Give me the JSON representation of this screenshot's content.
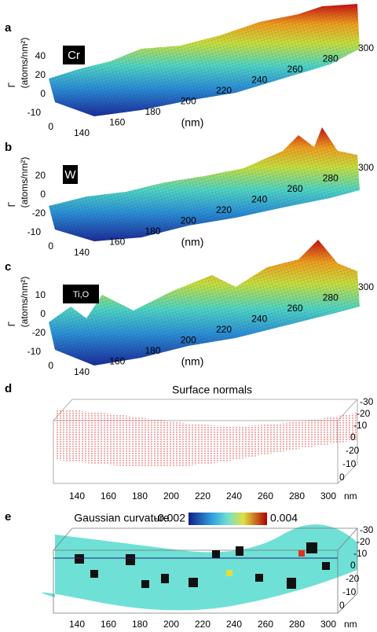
{
  "panels": [
    {
      "label": "a",
      "element": "Cr",
      "z_symbol": "Γ",
      "z_unit": "(atoms/nm²)",
      "z_ticks": [
        40,
        20,
        0
      ],
      "y_ticks": [
        -10,
        0
      ],
      "x_ticks": [
        140,
        160,
        180,
        200,
        220,
        240,
        260,
        280,
        300
      ],
      "x_unit": "(nm)"
    },
    {
      "label": "b",
      "element": "W",
      "z_symbol": "Γ",
      "z_unit": "(atoms/nm²)",
      "z_ticks": [
        20,
        0,
        -20
      ],
      "y_ticks": [
        -10,
        0
      ],
      "x_ticks": [
        140,
        160,
        180,
        200,
        220,
        240,
        260,
        280,
        300
      ],
      "x_unit": "(nm)"
    },
    {
      "label": "c",
      "element": "Ti,O",
      "z_symbol": "Γ",
      "z_unit": "(atoms/nm²)",
      "z_ticks": [
        10,
        0,
        -20
      ],
      "y_ticks": [
        -10,
        0
      ],
      "x_ticks": [
        140,
        160,
        180,
        200,
        220,
        240,
        260,
        280,
        300
      ],
      "x_unit": "(nm)"
    }
  ],
  "normals": {
    "label": "d",
    "title": "Surface normals",
    "z_ticks": [
      -30,
      -20,
      -10,
      0
    ],
    "y_ticks": [
      -20,
      -10,
      0
    ],
    "x_ticks": [
      140,
      160,
      180,
      200,
      220,
      240,
      260,
      280,
      300
    ],
    "x_unit": "nm"
  },
  "curvature": {
    "label": "e",
    "title": "Gaussian curvature",
    "colorbar_ticks": [
      -0.002,
      0.004
    ],
    "z_ticks": [
      -30,
      -20,
      -10,
      0
    ],
    "y_ticks": [
      -20,
      -10,
      0
    ],
    "x_ticks": [
      140,
      160,
      180,
      200,
      220,
      240,
      260,
      280,
      300
    ],
    "x_unit": "nm"
  }
}
